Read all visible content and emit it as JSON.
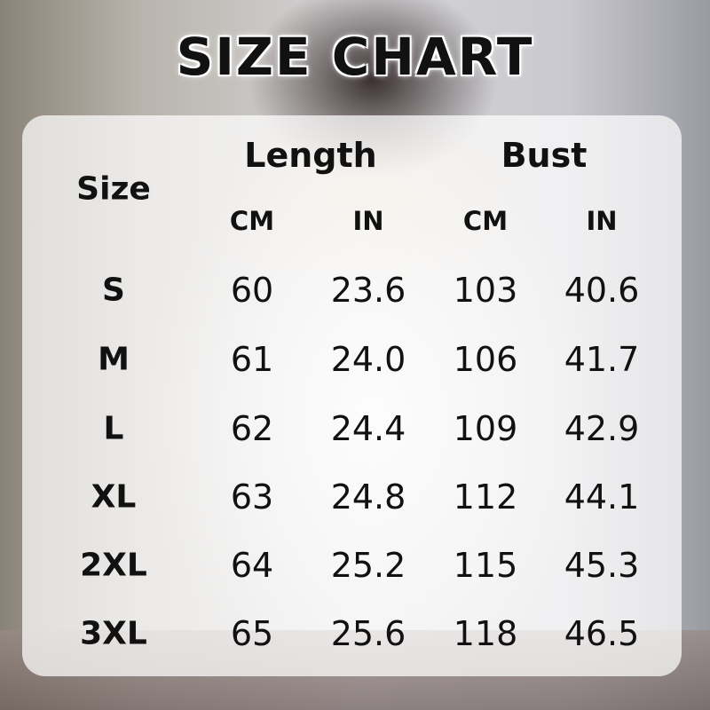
{
  "title": "SIZE CHART",
  "table": {
    "size_header": "Size",
    "groups": [
      {
        "label": "Length",
        "units": [
          "CM",
          "IN"
        ]
      },
      {
        "label": "Bust",
        "units": [
          "CM",
          "IN"
        ]
      }
    ],
    "rows": [
      {
        "size": "S",
        "values": [
          "60",
          "23.6",
          "103",
          "40.6"
        ]
      },
      {
        "size": "M",
        "values": [
          "61",
          "24.0",
          "106",
          "41.7"
        ]
      },
      {
        "size": "L",
        "values": [
          "62",
          "24.4",
          "109",
          "42.9"
        ]
      },
      {
        "size": "XL",
        "values": [
          "63",
          "24.8",
          "112",
          "44.1"
        ]
      },
      {
        "size": "2XL",
        "values": [
          "64",
          "25.2",
          "115",
          "45.3"
        ]
      },
      {
        "size": "3XL",
        "values": [
          "65",
          "25.6",
          "118",
          "46.5"
        ]
      }
    ]
  }
}
